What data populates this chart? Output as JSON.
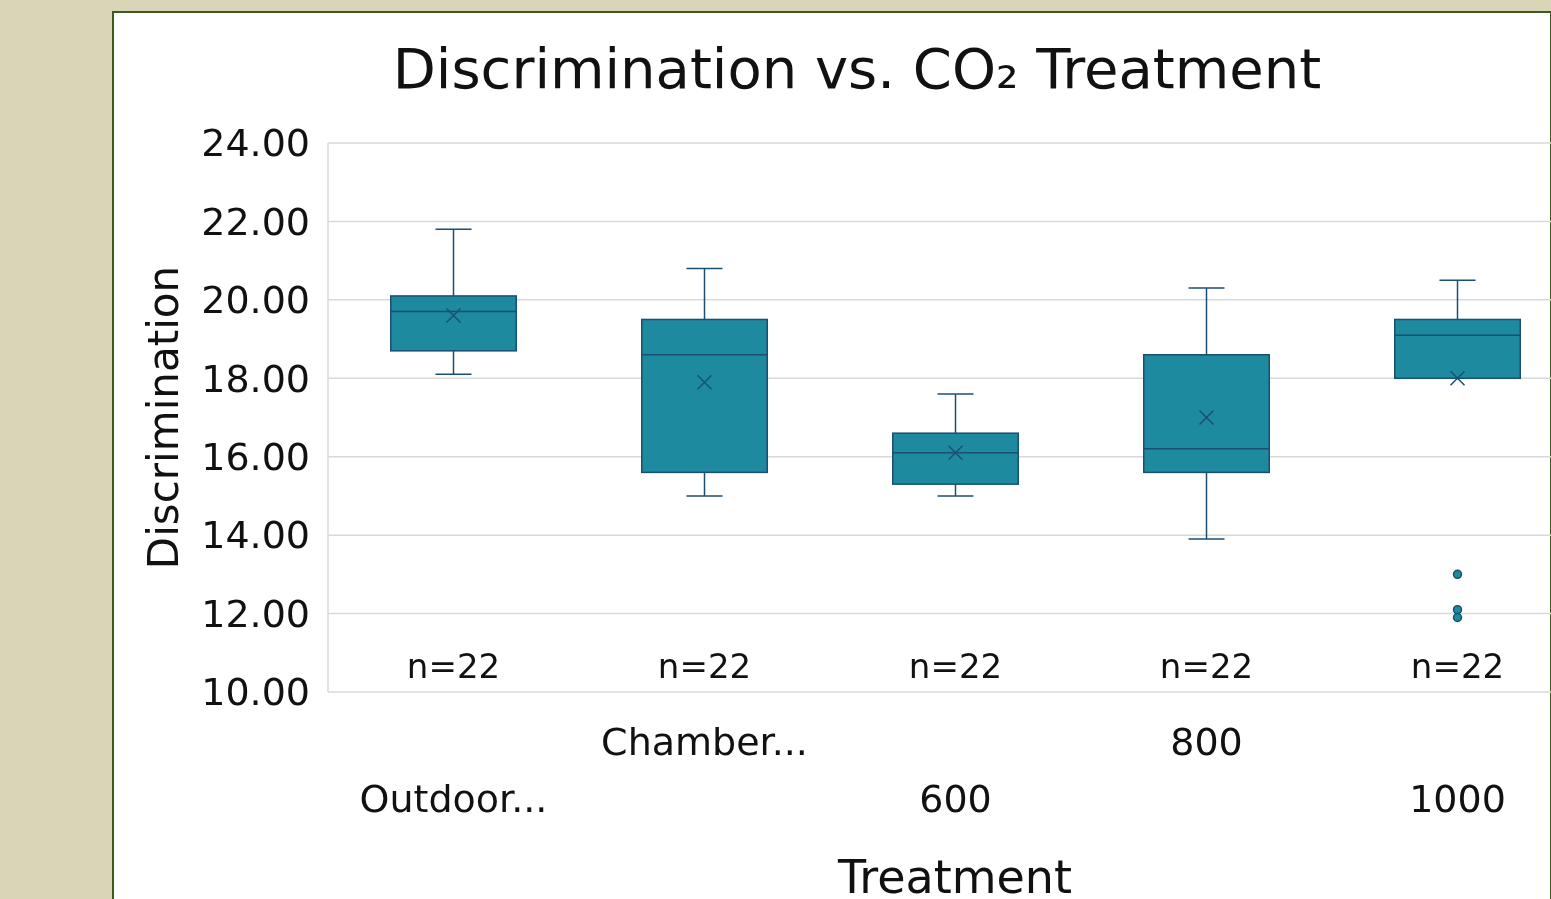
{
  "chart_data": {
    "type": "box",
    "title": "Discrimination vs. CO₂ Treatment",
    "xlabel": "Treatment",
    "ylabel": "Discrimination",
    "categories": [
      "Outdoor...",
      "Chamber...",
      "600",
      "800",
      "1000"
    ],
    "boxes": [
      {
        "low": 18.1,
        "q1": 18.7,
        "median": 19.7,
        "q3": 20.1,
        "high": 21.8,
        "mean": 19.6
      },
      {
        "low": 15.0,
        "q1": 15.6,
        "median": 18.6,
        "q3": 19.5,
        "high": 20.8,
        "mean": 17.9
      },
      {
        "low": 15.0,
        "q1": 15.3,
        "median": 16.1,
        "q3": 16.6,
        "high": 17.6,
        "mean": 16.1
      },
      {
        "low": 13.9,
        "q1": 15.6,
        "median": 16.2,
        "q3": 18.6,
        "high": 20.3,
        "mean": 17.0
      },
      {
        "low": 18.0,
        "q1": 18.0,
        "median": 19.1,
        "q3": 19.5,
        "high": 20.5,
        "mean": 18.0,
        "outliers": [
          13.0,
          12.1,
          11.9
        ]
      }
    ],
    "color": "#1e8aa0",
    "ylim": [
      10,
      24
    ],
    "yticks": [
      {
        "value": 10,
        "label": "10.00"
      },
      {
        "value": 12,
        "label": "12.00"
      },
      {
        "value": 14,
        "label": "14.00"
      },
      {
        "value": 16,
        "label": "16.00"
      },
      {
        "value": 18,
        "label": "18.00"
      },
      {
        "value": 20,
        "label": "20.00"
      },
      {
        "value": 22,
        "label": "22.00"
      },
      {
        "value": 24,
        "label": "24.00"
      }
    ],
    "grid": "y",
    "annotations": [
      "n=22",
      "n=22",
      "n=22",
      "n=22",
      "n=22"
    ]
  }
}
